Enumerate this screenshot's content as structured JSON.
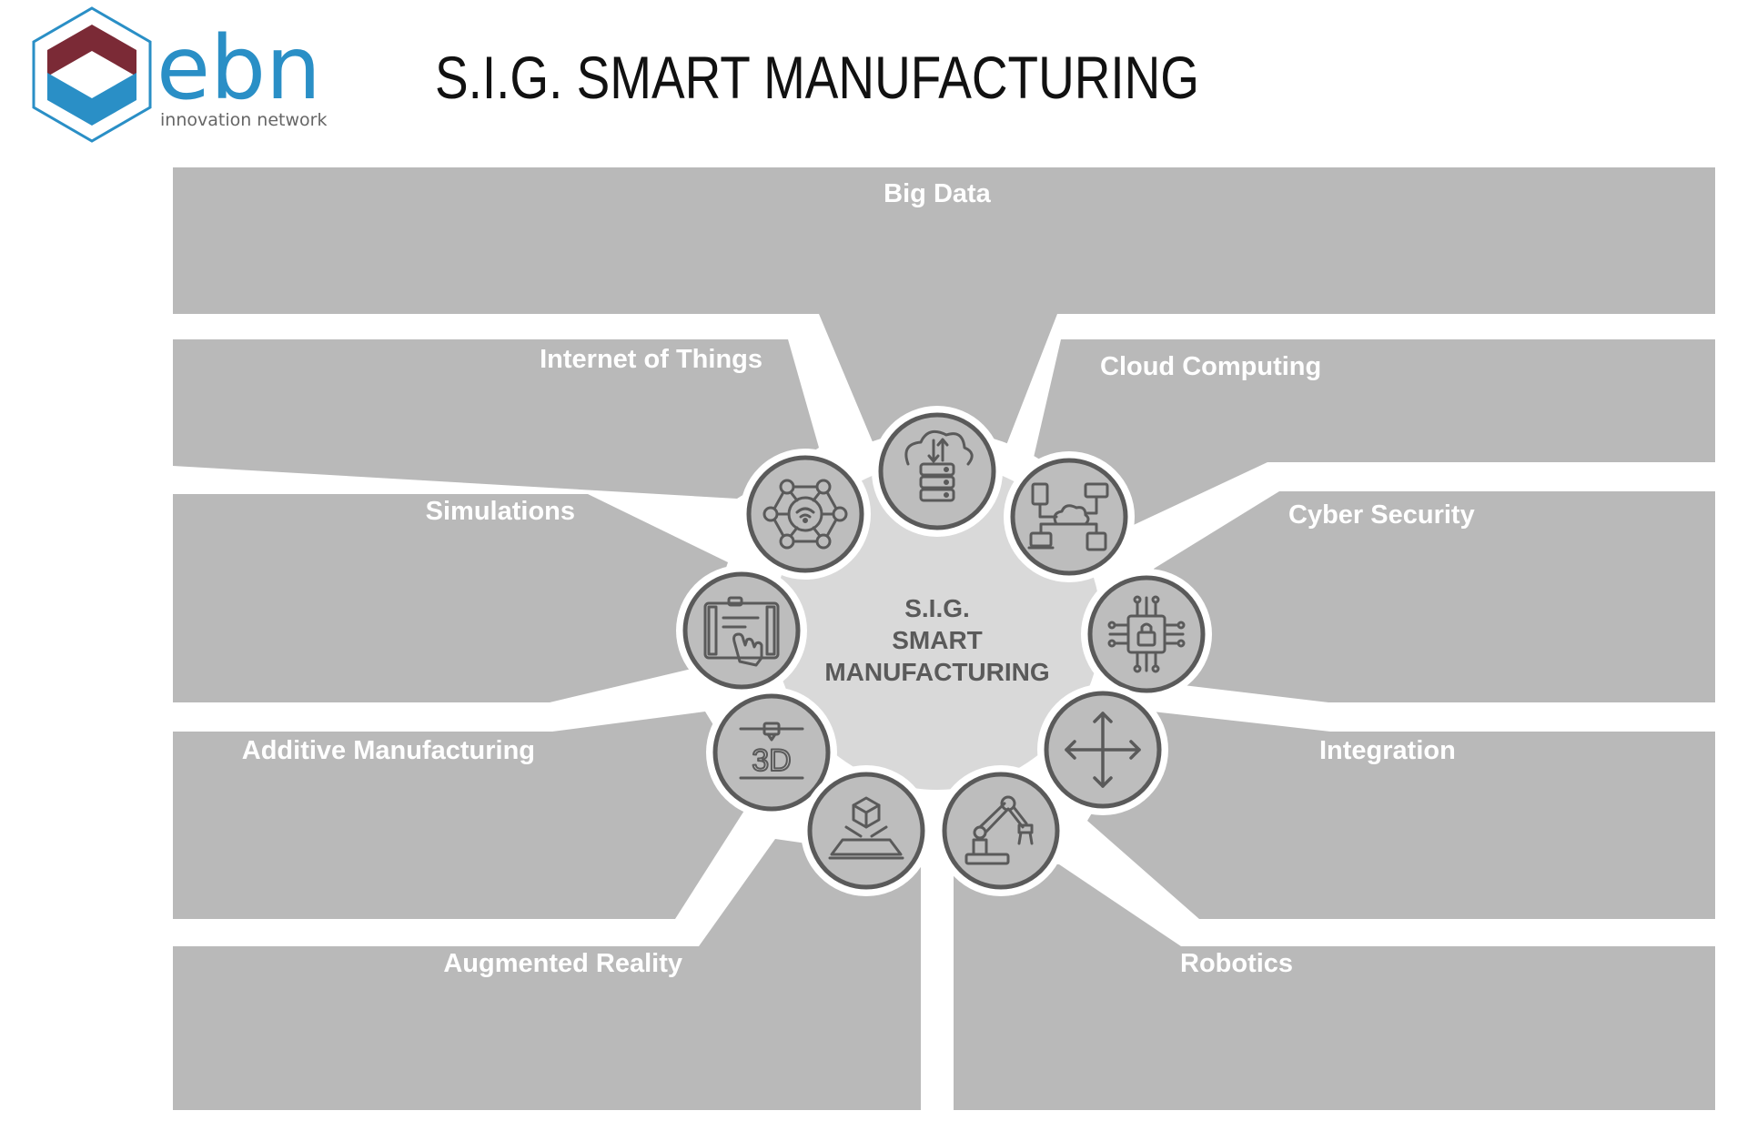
{
  "logo": {
    "wordmark": "ebn",
    "tagline": "innovation network",
    "colors": {
      "maroon": "#7b2a36",
      "blue": "#2a8fc6"
    }
  },
  "title": "S.I.G. SMART MANUFACTURING",
  "hub": {
    "lines": [
      "S.I.G.",
      "SMART",
      "MANUFACTURING"
    ]
  },
  "segments": [
    {
      "id": "big-data",
      "label": "Big Data",
      "icon": "server-cloud-icon"
    },
    {
      "id": "internet-of-things",
      "label": "Internet of Things",
      "icon": "network-wifi-icon"
    },
    {
      "id": "cloud-computing",
      "label": "Cloud Computing",
      "icon": "cloud-network-icon"
    },
    {
      "id": "simulations",
      "label": "Simulations",
      "icon": "touch-screen-icon"
    },
    {
      "id": "cyber-security",
      "label": "Cyber Security",
      "icon": "chip-lock-icon"
    },
    {
      "id": "additive-manufacturing",
      "label": "Additive Manufacturing",
      "icon": "3d-printer-icon"
    },
    {
      "id": "integration",
      "label": "Integration",
      "icon": "four-arrows-icon"
    },
    {
      "id": "augmented-reality",
      "label": "Augmented Reality",
      "icon": "hologram-cube-icon"
    },
    {
      "id": "robotics",
      "label": "Robotics",
      "icon": "robot-arm-icon"
    }
  ],
  "colors": {
    "panel": "#b9b9b9",
    "hub": "#d9d9d9",
    "icon_fill": "#bdbdbd",
    "icon_stroke": "#5a5a5a",
    "label": "#ffffff",
    "hub_text": "#5a5a5a",
    "title": "#111111"
  }
}
